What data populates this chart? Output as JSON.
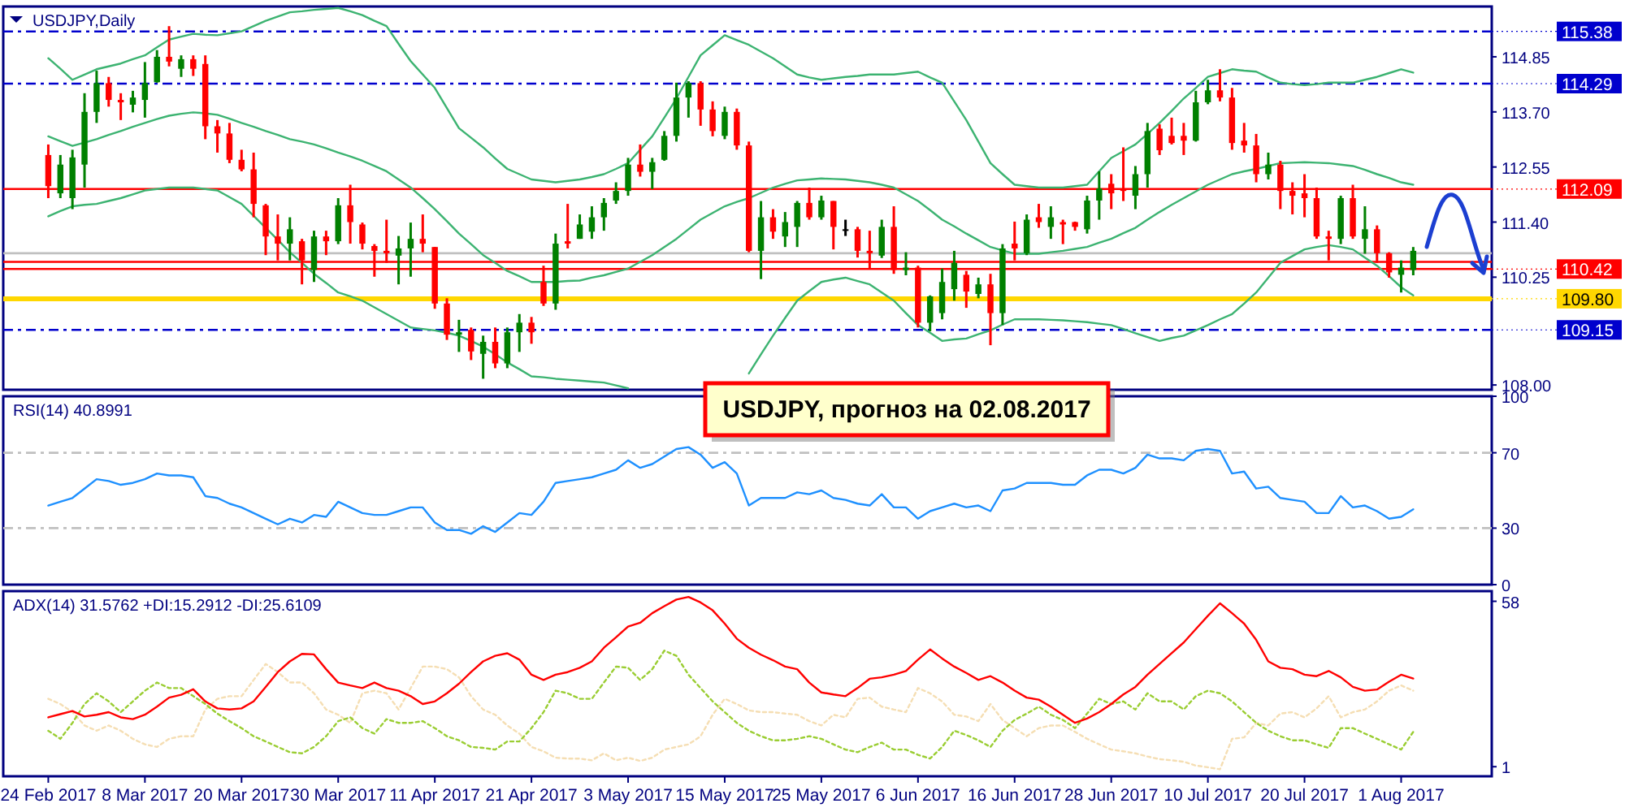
{
  "chart_data": [
    {
      "type": "candlestick",
      "title": "USDJPY,Daily",
      "categories": [
        null,
        null,
        null,
        null,
        null,
        null,
        null,
        null,
        null,
        null,
        null,
        null,
        null,
        null,
        null,
        null,
        null,
        null,
        null,
        null,
        null,
        null,
        null,
        null,
        null,
        null,
        null,
        null,
        null,
        null,
        null,
        null,
        null,
        null,
        null,
        null,
        null,
        null,
        null,
        null,
        null,
        null,
        null,
        null,
        null,
        null,
        null,
        null,
        null,
        null,
        null,
        null,
        null,
        null,
        null,
        null,
        null,
        null,
        null,
        null,
        null,
        null,
        null,
        null,
        null,
        null,
        null,
        null,
        null,
        null,
        null,
        null,
        null,
        null,
        null,
        null,
        null,
        null,
        null,
        null,
        null,
        null,
        null,
        null,
        null,
        null,
        null,
        null,
        null,
        null,
        null,
        null,
        null,
        null,
        null,
        null,
        null,
        null,
        null,
        null,
        null,
        null,
        null,
        null,
        null,
        null,
        null,
        null,
        null,
        null,
        null,
        null,
        null,
        null
      ],
      "ohlc": [
        [
          112.8,
          113.02,
          111.9,
          112.15
        ],
        [
          112.0,
          112.8,
          111.9,
          112.6
        ],
        [
          111.9,
          112.91,
          111.67,
          112.75
        ],
        [
          112.6,
          114.09,
          112.12,
          113.7
        ],
        [
          113.7,
          114.56,
          113.47,
          114.3
        ],
        [
          114.3,
          114.43,
          113.81,
          113.95
        ],
        [
          113.95,
          114.09,
          113.53,
          113.9
        ],
        [
          113.85,
          114.14,
          113.69,
          114.0
        ],
        [
          113.95,
          114.74,
          113.58,
          114.3
        ],
        [
          114.32,
          114.99,
          114.31,
          114.85
        ],
        [
          114.85,
          115.49,
          114.65,
          114.75
        ],
        [
          114.6,
          114.88,
          114.43,
          114.8
        ],
        [
          114.8,
          114.88,
          114.45,
          114.6
        ],
        [
          114.7,
          114.88,
          113.13,
          113.4
        ],
        [
          113.4,
          113.53,
          112.85,
          113.25
        ],
        [
          113.25,
          113.47,
          112.63,
          112.7
        ],
        [
          112.7,
          112.91,
          112.46,
          112.5
        ],
        [
          112.5,
          112.85,
          111.5,
          111.78
        ],
        [
          111.75,
          111.78,
          110.71,
          111.1
        ],
        [
          111.1,
          111.56,
          110.6,
          110.95
        ],
        [
          110.95,
          111.5,
          110.6,
          111.25
        ],
        [
          111.0,
          111.05,
          110.1,
          110.6
        ],
        [
          110.4,
          111.22,
          110.15,
          111.1
        ],
        [
          111.1,
          111.22,
          110.71,
          111.0
        ],
        [
          111.0,
          111.9,
          110.94,
          111.75
        ],
        [
          111.75,
          112.18,
          110.95,
          111.4
        ],
        [
          111.35,
          111.39,
          110.83,
          110.95
        ],
        [
          110.9,
          110.94,
          110.26,
          110.8
        ],
        [
          110.8,
          111.45,
          110.55,
          110.75
        ],
        [
          110.7,
          111.11,
          110.1,
          110.85
        ],
        [
          110.85,
          111.39,
          110.26,
          111.05
        ],
        [
          111.05,
          111.56,
          110.77,
          110.95
        ],
        [
          110.88,
          110.88,
          109.59,
          109.7
        ],
        [
          109.7,
          109.81,
          108.94,
          109.05
        ],
        [
          109.05,
          109.36,
          108.69,
          109.1
        ],
        [
          109.15,
          109.2,
          108.52,
          108.7
        ],
        [
          108.65,
          109.03,
          108.13,
          108.9
        ],
        [
          108.9,
          109.2,
          108.35,
          108.45
        ],
        [
          108.45,
          109.2,
          108.35,
          109.1
        ],
        [
          109.1,
          109.48,
          108.69,
          109.3
        ],
        [
          109.3,
          109.42,
          108.86,
          109.1
        ],
        [
          110.15,
          110.49,
          109.65,
          109.7
        ],
        [
          109.7,
          111.16,
          109.57,
          110.95
        ],
        [
          111.0,
          111.78,
          110.85,
          110.95
        ],
        [
          111.05,
          111.56,
          111.05,
          111.35
        ],
        [
          111.2,
          111.73,
          111.05,
          111.5
        ],
        [
          111.5,
          111.9,
          111.22,
          111.8
        ],
        [
          111.85,
          112.23,
          111.78,
          112.05
        ],
        [
          112.05,
          112.74,
          111.95,
          112.6
        ],
        [
          112.6,
          113.02,
          112.35,
          112.45
        ],
        [
          112.45,
          112.74,
          112.09,
          112.65
        ],
        [
          112.7,
          113.3,
          112.68,
          113.2
        ],
        [
          113.2,
          114.31,
          113.08,
          114.0
        ],
        [
          114.0,
          114.34,
          113.58,
          114.3
        ],
        [
          114.3,
          114.34,
          113.41,
          113.75
        ],
        [
          113.75,
          113.92,
          113.19,
          113.3
        ],
        [
          113.2,
          113.81,
          113.13,
          113.7
        ],
        [
          113.7,
          113.77,
          112.91,
          113.0
        ],
        [
          113.0,
          113.08,
          110.77,
          110.8
        ],
        [
          110.8,
          111.84,
          110.21,
          111.5
        ],
        [
          111.5,
          111.67,
          111.05,
          111.2
        ],
        [
          111.1,
          111.61,
          110.88,
          111.4
        ],
        [
          111.3,
          111.84,
          110.88,
          111.8
        ],
        [
          111.8,
          112.12,
          111.45,
          111.5
        ],
        [
          111.5,
          111.95,
          111.45,
          111.85
        ],
        [
          111.84,
          111.84,
          110.83,
          111.3
        ],
        [
          111.25,
          111.45,
          111.11,
          111.25
        ],
        [
          111.25,
          111.3,
          110.66,
          110.8
        ],
        [
          110.8,
          111.22,
          110.43,
          110.75
        ],
        [
          110.7,
          111.45,
          110.65,
          111.3
        ],
        [
          111.3,
          111.73,
          110.32,
          110.4
        ],
        [
          110.4,
          110.77,
          110.29,
          110.45
        ],
        [
          110.45,
          110.49,
          109.2,
          109.3
        ],
        [
          109.3,
          109.87,
          109.12,
          109.85
        ],
        [
          109.5,
          110.43,
          109.37,
          110.15
        ],
        [
          110.0,
          110.8,
          109.76,
          110.55
        ],
        [
          110.3,
          110.38,
          109.61,
          109.95
        ],
        [
          109.9,
          110.24,
          109.81,
          110.1
        ],
        [
          110.1,
          110.32,
          108.83,
          109.5
        ],
        [
          109.5,
          110.94,
          109.25,
          110.85
        ],
        [
          110.95,
          111.41,
          110.6,
          110.85
        ],
        [
          110.75,
          111.56,
          110.71,
          111.45
        ],
        [
          111.5,
          111.78,
          111.28,
          111.4
        ],
        [
          111.3,
          111.73,
          111.05,
          111.5
        ],
        [
          111.4,
          111.45,
          110.94,
          111.35
        ],
        [
          111.4,
          111.41,
          111.22,
          111.3
        ],
        [
          111.25,
          111.95,
          111.16,
          111.85
        ],
        [
          111.85,
          112.46,
          111.45,
          112.1
        ],
        [
          112.2,
          112.4,
          111.67,
          112.0
        ],
        [
          112.1,
          112.96,
          111.84,
          112.05
        ],
        [
          111.95,
          112.57,
          111.67,
          112.4
        ],
        [
          112.4,
          113.47,
          112.12,
          113.3
        ],
        [
          113.35,
          113.44,
          112.8,
          112.9
        ],
        [
          113.2,
          113.58,
          113.02,
          113.05
        ],
        [
          113.2,
          113.47,
          112.8,
          113.1
        ],
        [
          113.1,
          114.14,
          113.08,
          113.9
        ],
        [
          113.9,
          114.37,
          113.86,
          114.15
        ],
        [
          114.15,
          114.59,
          113.92,
          114.0
        ],
        [
          114.0,
          114.2,
          112.91,
          113.05
        ],
        [
          113.1,
          113.47,
          112.85,
          113.0
        ],
        [
          113.0,
          113.24,
          112.23,
          112.4
        ],
        [
          112.4,
          112.85,
          112.29,
          112.6
        ],
        [
          112.6,
          112.68,
          111.67,
          112.05
        ],
        [
          112.05,
          112.23,
          111.56,
          111.95
        ],
        [
          112.0,
          112.4,
          111.5,
          111.9
        ],
        [
          111.9,
          112.12,
          111.05,
          111.1
        ],
        [
          111.1,
          111.22,
          110.6,
          111.05
        ],
        [
          111.05,
          111.95,
          110.94,
          111.9
        ],
        [
          111.9,
          112.18,
          111.05,
          111.1
        ],
        [
          111.05,
          111.73,
          110.74,
          111.25
        ],
        [
          111.25,
          111.33,
          110.55,
          110.75
        ],
        [
          110.75,
          110.77,
          110.24,
          110.35
        ],
        [
          110.3,
          110.6,
          109.93,
          110.45
        ],
        [
          110.4,
          110.88,
          110.29,
          110.8
        ]
      ],
      "colors": [
        "#ff0000",
        "#008000",
        "#008000",
        "#008000",
        "#008000",
        "#ff0000",
        "#ff0000",
        "#008000",
        "#008000",
        "#008000",
        "#ff0000",
        "#008000",
        "#ff0000",
        "#ff0000",
        "#ff0000",
        "#ff0000",
        "#ff0000",
        "#ff0000",
        "#ff0000",
        "#ff0000",
        "#008000",
        "#ff0000",
        "#008000",
        "#ff0000",
        "#008000",
        "#ff0000",
        "#ff0000",
        "#ff0000",
        "#ff0000",
        "#008000",
        "#008000",
        "#ff0000",
        "#ff0000",
        "#ff0000",
        "#008000",
        "#ff0000",
        "#008000",
        "#ff0000",
        "#008000",
        "#008000",
        "#ff0000",
        "#ff0000",
        "#008000",
        "#ff0000",
        "#008000",
        "#008000",
        "#008000",
        "#008000",
        "#008000",
        "#ff0000",
        "#008000",
        "#008000",
        "#008000",
        "#008000",
        "#ff0000",
        "#ff0000",
        "#008000",
        "#ff0000",
        "#ff0000",
        "#008000",
        "#ff0000",
        "#008000",
        "#008000",
        "#ff0000",
        "#008000",
        "#ff0000",
        "#000000",
        "#ff0000",
        "#ff0000",
        "#008000",
        "#ff0000",
        "#008000",
        "#ff0000",
        "#008000",
        "#008000",
        "#008000",
        "#ff0000",
        "#008000",
        "#ff0000",
        "#008000",
        "#ff0000",
        "#008000",
        "#ff0000",
        "#008000",
        "#ff0000",
        "#ff0000",
        "#008000",
        "#008000",
        "#ff0000",
        "#ff0000",
        "#008000",
        "#008000",
        "#ff0000",
        "#ff0000",
        "#ff0000",
        "#008000",
        "#008000",
        "#ff0000",
        "#ff0000",
        "#ff0000",
        "#ff0000",
        "#008000",
        "#ff0000",
        "#ff0000",
        "#ff0000",
        "#ff0000",
        "#ff0000",
        "#008000",
        "#ff0000",
        "#008000",
        "#ff0000",
        "#ff0000",
        "#008000",
        "#008000"
      ],
      "series": [
        {
          "type": "line",
          "color": "#3cb371",
          "values": [
            114.82,
            114.6,
            114.37,
            114.48,
            114.59,
            114.65,
            114.71,
            114.8,
            114.88,
            115.05,
            115.21,
            115.27,
            115.33,
            115.31,
            115.3,
            115.34,
            115.38,
            115.49,
            115.6,
            115.69,
            115.78,
            115.8,
            115.83,
            115.85,
            115.87,
            115.8,
            115.72,
            115.6,
            115.49,
            115.12,
            114.76,
            114.48,
            114.2,
            113.78,
            113.36,
            113.16,
            112.96,
            112.73,
            112.51,
            112.4,
            112.29,
            112.26,
            112.23,
            112.26,
            112.29,
            112.34,
            112.4,
            112.51,
            112.63,
            112.91,
            113.19,
            113.58,
            113.98,
            114.43,
            114.88,
            115.09,
            115.3,
            115.2,
            115.1,
            114.96,
            114.82,
            114.65,
            114.48,
            114.42,
            114.37,
            114.4,
            114.43,
            114.45,
            114.48,
            114.48,
            114.48,
            114.51,
            114.54,
            114.42,
            114.31,
            113.92,
            113.53,
            113.08,
            112.63,
            112.4,
            112.18,
            112.15,
            112.12,
            112.12,
            112.12,
            112.15,
            112.18,
            112.46,
            112.74,
            112.88,
            113.02,
            113.24,
            113.47,
            113.72,
            113.98,
            114.2,
            114.43,
            114.51,
            114.59,
            114.56,
            114.54,
            114.42,
            114.31,
            114.28,
            114.26,
            114.28,
            114.31,
            114.31,
            114.31,
            114.37,
            114.43,
            114.51,
            114.59,
            114.52
          ]
        },
        {
          "type": "line",
          "color": "#3cb371",
          "values": [
            113.19,
            113.09,
            112.99,
            113.06,
            113.13,
            113.22,
            113.3,
            113.39,
            113.47,
            113.55,
            113.62,
            113.66,
            113.69,
            113.67,
            113.64,
            113.56,
            113.47,
            113.39,
            113.3,
            113.22,
            113.13,
            113.08,
            113.02,
            112.94,
            112.85,
            112.77,
            112.68,
            112.57,
            112.46,
            112.29,
            112.12,
            111.9,
            111.67,
            111.42,
            111.16,
            110.94,
            110.71,
            110.55,
            110.38,
            110.27,
            110.15,
            110.15,
            110.15,
            110.17,
            110.18,
            110.24,
            110.29,
            110.36,
            110.43,
            110.57,
            110.71,
            110.88,
            111.05,
            111.25,
            111.45,
            111.59,
            111.73,
            111.82,
            111.9,
            112.01,
            112.12,
            112.2,
            112.27,
            112.29,
            112.31,
            112.3,
            112.29,
            112.26,
            112.23,
            112.18,
            112.12,
            111.98,
            111.84,
            111.65,
            111.45,
            111.31,
            111.16,
            111.02,
            110.88,
            110.81,
            110.74,
            110.74,
            110.74,
            110.77,
            110.8,
            110.84,
            110.88,
            110.97,
            111.05,
            111.17,
            111.28,
            111.45,
            111.61,
            111.76,
            111.9,
            112.04,
            112.18,
            112.29,
            112.4,
            112.46,
            112.51,
            112.57,
            112.63,
            112.64,
            112.65,
            112.64,
            112.63,
            112.6,
            112.57,
            112.49,
            112.4,
            112.32,
            112.23,
            112.18
          ]
        },
        {
          "type": "line",
          "color": "#3cb371",
          "values": [
            111.52,
            111.63,
            111.73,
            111.76,
            111.78,
            111.84,
            111.9,
            111.98,
            112.06,
            112.09,
            112.12,
            112.12,
            112.12,
            112.09,
            112.06,
            111.92,
            111.78,
            111.53,
            111.28,
            111.03,
            110.77,
            110.55,
            110.32,
            110.13,
            109.93,
            109.85,
            109.76,
            109.62,
            109.48,
            109.34,
            109.2,
            109.17,
            109.14,
            109.09,
            109.03,
            108.92,
            108.8,
            108.64,
            108.47,
            108.33,
            108.18,
            108.16,
            108.13,
            108.11,
            108.09,
            108.07,
            108.05,
            107.99,
            107.93,
            null,
            null,
            null,
            null,
            null,
            null,
            null,
            null,
            null,
            108.24,
            108.64,
            109.03,
            109.4,
            109.76,
            109.96,
            110.15,
            110.2,
            110.24,
            110.17,
            110.1,
            109.93,
            109.76,
            109.5,
            109.25,
            109.09,
            108.92,
            108.95,
            108.97,
            109.06,
            109.14,
            109.26,
            109.37,
            109.37,
            109.37,
            109.36,
            109.35,
            109.33,
            109.31,
            109.28,
            109.25,
            109.17,
            109.08,
            109.0,
            108.92,
            108.98,
            109.03,
            109.14,
            109.25,
            109.37,
            109.48,
            109.7,
            109.93,
            110.24,
            110.55,
            110.69,
            110.83,
            110.88,
            110.92,
            110.88,
            110.83,
            110.66,
            110.49,
            110.27,
            110.04,
            109.87
          ]
        }
      ],
      "ylim": [
        107.9,
        115.9
      ],
      "yticks": [
        {
          "value": 108,
          "label": "108.00"
        },
        {
          "value": 110.25,
          "label": "110.25"
        },
        {
          "value": 111.4,
          "label": "111.40"
        },
        {
          "value": 112.55,
          "label": "112.55"
        },
        {
          "value": 113.7,
          "label": "113.70"
        },
        {
          "value": 114.85,
          "label": "114.85"
        }
      ],
      "ref_lines": [
        {
          "axis": "y",
          "value": 115.38,
          "label": "115.38",
          "color": "#0000cd",
          "line_style": "dashed"
        },
        {
          "axis": "y",
          "value": 114.29,
          "label": "114.29",
          "color": "#0000cd",
          "line_style": "dashed"
        },
        {
          "axis": "y",
          "value": 112.09,
          "label": "112.09",
          "color": "#ff0000"
        },
        {
          "axis": "y",
          "value": 110.75,
          "color": "#c0c0c0"
        },
        {
          "axis": "y",
          "value": 110.57,
          "color": "#ff0000"
        },
        {
          "axis": "y",
          "value": 110.42,
          "label": "110.42",
          "color": "#ff0000"
        },
        {
          "axis": "y",
          "value": 109.8,
          "label": "109.80",
          "color": "#ffd700"
        },
        {
          "axis": "y",
          "value": 109.15,
          "label": "109.15",
          "color": "#0000cd",
          "line_style": "dashed"
        }
      ],
      "annotations": [
        "USDJPY, прогноз на 02.08.2017"
      ],
      "tick_labels": "y"
    },
    {
      "type": "line",
      "title": "RSI(14) 40.8991",
      "categories": [
        null,
        null,
        null,
        null,
        null,
        null,
        null,
        null,
        null,
        null,
        null,
        null,
        null,
        null,
        null,
        null,
        null,
        null,
        null,
        null,
        null,
        null,
        null,
        null,
        null,
        null,
        null,
        null,
        null,
        null,
        null,
        null,
        null,
        null,
        null,
        null,
        null,
        null,
        null,
        null,
        null,
        null,
        null,
        null,
        null,
        null,
        null,
        null,
        null,
        null,
        null,
        null,
        null,
        null,
        null,
        null,
        null,
        null,
        null,
        null,
        null,
        null,
        null,
        null,
        null,
        null,
        null,
        null,
        null,
        null,
        null,
        null,
        null,
        null,
        null,
        null,
        null,
        null,
        null,
        null,
        null,
        null,
        null,
        null,
        null,
        null,
        null,
        null,
        null,
        null,
        null,
        null,
        null,
        null,
        null,
        null,
        null,
        null,
        null,
        null,
        null,
        null,
        null,
        null,
        null,
        null,
        null,
        null,
        null,
        null,
        null,
        null,
        null,
        null
      ],
      "series": [
        {
          "color": "#1e90ff",
          "values": [
            42,
            44,
            46,
            51,
            56,
            55,
            53,
            54,
            56,
            59,
            58,
            58,
            57,
            47,
            46,
            43,
            41,
            38,
            35,
            32,
            35,
            33,
            37,
            36,
            44,
            41,
            38,
            37,
            37,
            39,
            41,
            41,
            33,
            29,
            29,
            27,
            31,
            28,
            33,
            38,
            37,
            44,
            54,
            55,
            56,
            57,
            59,
            61,
            66,
            62,
            64,
            68,
            72,
            73,
            69,
            62,
            65,
            59,
            42,
            46,
            46,
            46,
            49,
            48,
            50,
            46,
            45,
            43,
            42,
            48,
            41,
            41,
            35,
            39,
            41,
            43,
            41,
            42,
            39,
            50,
            51,
            54,
            54,
            54,
            53,
            53,
            58,
            61,
            61,
            59,
            62,
            69,
            67,
            67,
            66,
            71,
            72,
            71,
            59,
            60,
            51,
            52,
            46,
            45,
            44,
            38,
            38,
            47,
            41,
            42,
            39,
            35,
            36,
            40
          ]
        }
      ],
      "ylim": [
        0,
        100
      ],
      "yticks": [
        0,
        30,
        70,
        100
      ],
      "ref_lines": [
        {
          "axis": "y",
          "value": 70,
          "color": "#c0c0c0",
          "line_style": "dashed"
        },
        {
          "axis": "y",
          "value": 30,
          "color": "#c0c0c0",
          "line_style": "dashed"
        }
      ],
      "tick_labels": "y"
    },
    {
      "type": "line",
      "title": "ADX(14) 31.5762 +DI:15.2912 -DI:25.6109",
      "categories": [
        "24 Feb 2017",
        null,
        null,
        null,
        null,
        null,
        null,
        null,
        "8 Mar 2017",
        null,
        null,
        null,
        null,
        null,
        null,
        null,
        "20 Mar 2017",
        null,
        null,
        null,
        null,
        null,
        null,
        null,
        "30 Mar 2017",
        null,
        null,
        null,
        null,
        null,
        null,
        null,
        "11 Apr 2017",
        null,
        null,
        null,
        null,
        null,
        null,
        null,
        "21 Apr 2017",
        null,
        null,
        null,
        null,
        null,
        null,
        null,
        "3 May 2017",
        null,
        null,
        null,
        null,
        null,
        null,
        null,
        "15 May 2017",
        null,
        null,
        null,
        null,
        null,
        null,
        null,
        "25 May 2017",
        null,
        null,
        null,
        null,
        null,
        null,
        null,
        "6 Jun 2017",
        null,
        null,
        null,
        null,
        null,
        null,
        null,
        "16 Jun 2017",
        null,
        null,
        null,
        null,
        null,
        null,
        null,
        "28 Jun 2017",
        null,
        null,
        null,
        null,
        null,
        null,
        null,
        "10 Jul 2017",
        null,
        null,
        null,
        null,
        null,
        null,
        null,
        "20 Jul 2017",
        null,
        null,
        null,
        null,
        null,
        null,
        null,
        "1 Aug 2017",
        null
      ],
      "series": [
        {
          "color": "#f5deb3",
          "line_style": "dotted",
          "values": [
            24.4,
            22.6,
            19.8,
            15.2,
            13.4,
            15.2,
            13.4,
            10.6,
            8.7,
            7.8,
            10.6,
            11.5,
            11.5,
            20.7,
            24.4,
            25.3,
            25.3,
            30.9,
            36.4,
            33.6,
            30,
            30,
            26.3,
            20.7,
            18.9,
            16.1,
            26.3,
            27.2,
            26.3,
            20.7,
            28.1,
            35.5,
            35.5,
            34.6,
            31.8,
            25.3,
            20.7,
            18.9,
            15.2,
            12.4,
            7.8,
            6.3,
            4.1,
            3.8,
            3.8,
            3.2,
            5.6,
            3.2,
            4.1,
            3,
            4.1,
            6.9,
            7.8,
            8.7,
            11.5,
            18.9,
            24.4,
            22.6,
            20.4,
            19.8,
            19.8,
            19.3,
            18.9,
            16.7,
            15.2,
            18.9,
            18,
            24.4,
            24.8,
            21.7,
            20.7,
            19.8,
            28.1,
            26.3,
            23.5,
            18.9,
            18.3,
            16.7,
            22.6,
            17.1,
            14.3,
            11.5,
            14.3,
            15.2,
            15.2,
            13,
            10.6,
            8.7,
            6.9,
            6.3,
            5.6,
            4.5,
            3.6,
            3.2,
            2.7,
            1.4,
            0.8,
            0.1,
            10.6,
            11.1,
            16.1,
            15.2,
            19.3,
            19.8,
            18,
            21.1,
            25.3,
            18,
            19.8,
            20.7,
            23.5,
            27.2,
            29,
            27.2
          ]
        },
        {
          "color": "#9acd32",
          "line_style": "dotted",
          "values": [
            13.4,
            10.6,
            16.1,
            22.6,
            26.3,
            23.5,
            19.8,
            23.5,
            27.2,
            30,
            28.1,
            28.1,
            25.3,
            22.6,
            19.3,
            16.7,
            14.3,
            11.5,
            9.7,
            7.8,
            6,
            5.6,
            7.8,
            11.5,
            16.7,
            18,
            14.3,
            12.4,
            17.4,
            16.1,
            16.1,
            16.7,
            14.3,
            11.5,
            10.1,
            7.8,
            7.5,
            6.9,
            9.7,
            9.7,
            14.3,
            19.8,
            27.2,
            26.3,
            24.4,
            24.4,
            30,
            35.5,
            35.1,
            30.9,
            34.6,
            41,
            39.2,
            32.7,
            28.1,
            23.5,
            19.8,
            16.1,
            13.4,
            11.5,
            10.1,
            10.1,
            10.6,
            11.5,
            10.6,
            8.7,
            6.9,
            6,
            7.8,
            9.3,
            6.9,
            6.9,
            5.1,
            3.8,
            7.8,
            13.4,
            11.9,
            10.1,
            7.8,
            13.4,
            17.1,
            19.3,
            21.7,
            18.9,
            17.1,
            14.3,
            19.3,
            24.4,
            22.6,
            23.5,
            20.7,
            26.3,
            23.5,
            23.5,
            20.7,
            25.3,
            27.2,
            26.3,
            23.5,
            19.8,
            16.1,
            13.4,
            11.5,
            10.1,
            10.1,
            8.7,
            7.5,
            14.3,
            14.3,
            12.4,
            10.6,
            8.7,
            6.9,
            13
          ]
        },
        {
          "color": "#ff0000",
          "values": [
            18,
            19.1,
            20.2,
            18.3,
            18.9,
            19.8,
            18,
            17.4,
            18.9,
            21.7,
            24.8,
            25.8,
            27.7,
            23.5,
            21.1,
            20.7,
            21.1,
            23.5,
            28.5,
            33.6,
            37.3,
            39.9,
            39.7,
            34.6,
            30,
            29,
            28.1,
            30,
            28.1,
            27.2,
            25.3,
            22.6,
            23.5,
            26.3,
            29.6,
            33.6,
            37.3,
            39.2,
            40.1,
            37.9,
            32.7,
            30.9,
            32.7,
            33.6,
            35.1,
            37.3,
            42,
            45.6,
            49.3,
            50.6,
            53.9,
            56.3,
            58.6,
            59.5,
            57.6,
            54.9,
            50.3,
            45.1,
            42,
            39.6,
            37.7,
            35.5,
            34.6,
            30,
            26.6,
            25.9,
            25.3,
            28.1,
            31.3,
            31.8,
            32.7,
            34,
            37.9,
            41.4,
            38.3,
            35.5,
            33.3,
            30.9,
            32.2,
            30,
            27.2,
            24.8,
            24.1,
            21.7,
            18.9,
            16.1,
            17.6,
            19.8,
            22.6,
            25.9,
            28.5,
            32.7,
            36.4,
            40.1,
            43.8,
            48.4,
            53,
            57.3,
            53.9,
            50.3,
            44.7,
            37.3,
            35.1,
            34.6,
            32.7,
            32.2,
            34,
            31.8,
            28.5,
            27.2,
            27.6,
            30.3,
            32.7,
            31.4
          ]
        }
      ],
      "ylim": [
        -2.3,
        61.5
      ],
      "yticks": [
        1,
        58
      ]
    }
  ]
}
